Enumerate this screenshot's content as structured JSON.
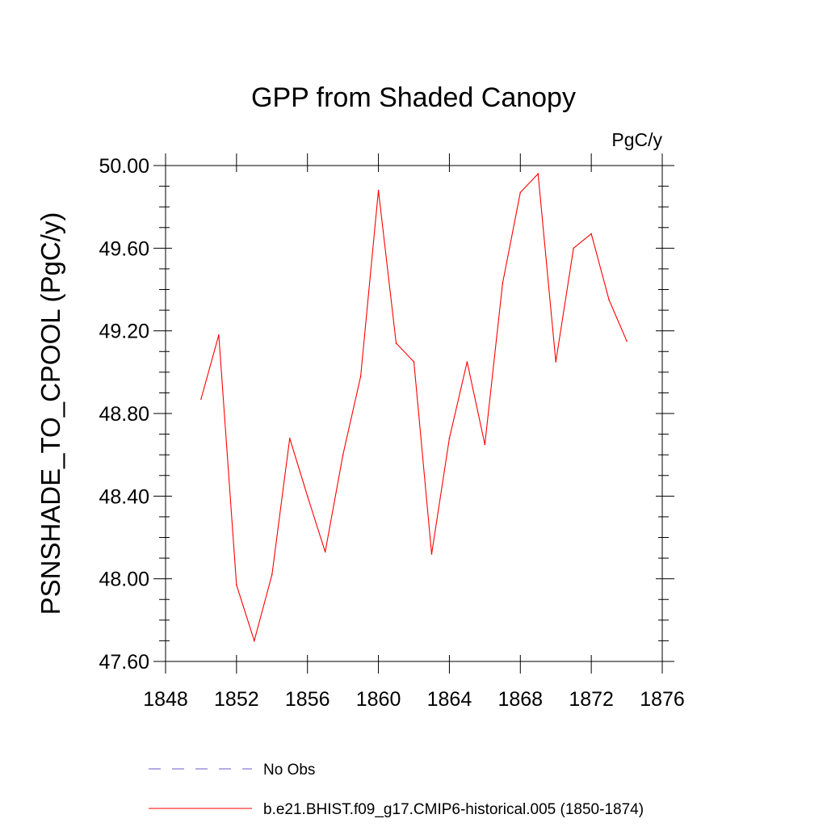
{
  "chart_data": {
    "type": "line",
    "title": "GPP from Shaded Canopy",
    "units_label": "PgC/y",
    "ylabel": "PSNSHADE_TO_CPOOL  (PgC/y)",
    "xlabel": "",
    "xlim": [
      1848,
      1876
    ],
    "ylim": [
      47.6,
      50.0
    ],
    "x_ticks": [
      1848,
      1852,
      1856,
      1860,
      1864,
      1868,
      1872,
      1876
    ],
    "x_tick_labels": [
      "1848",
      "1852",
      "1856",
      "1860",
      "1864",
      "1868",
      "1872",
      "1876"
    ],
    "y_ticks": [
      47.6,
      48.0,
      48.4,
      48.8,
      49.2,
      49.6,
      50.0
    ],
    "y_tick_labels": [
      "47.60",
      "48.00",
      "48.40",
      "48.80",
      "49.20",
      "49.60",
      "50.00"
    ],
    "grid": false,
    "legend_position": "bottom",
    "series": [
      {
        "name": "b.e21.BHIST.f09_g17.CMIP6-historical.005 (1850-1874)",
        "color": "#ff0000",
        "style": "solid",
        "x": [
          1850,
          1851,
          1852,
          1853,
          1854,
          1855,
          1856,
          1857,
          1858,
          1859,
          1860,
          1861,
          1862,
          1863,
          1864,
          1865,
          1866,
          1867,
          1868,
          1869,
          1870,
          1871,
          1872,
          1873,
          1874
        ],
        "values": [
          48.87,
          49.18,
          47.97,
          47.7,
          48.02,
          48.68,
          48.4,
          48.13,
          48.6,
          48.98,
          49.88,
          49.14,
          49.05,
          48.12,
          48.68,
          49.05,
          48.65,
          49.43,
          49.87,
          49.96,
          49.05,
          49.6,
          49.67,
          49.35,
          49.15
        ]
      }
    ],
    "legend": [
      {
        "label": "No Obs",
        "color": "#6a5acd",
        "style": "dashed"
      },
      {
        "label": "b.e21.BHIST.f09_g17.CMIP6-historical.005 (1850-1874)",
        "color": "#ff0000",
        "style": "solid"
      }
    ]
  }
}
